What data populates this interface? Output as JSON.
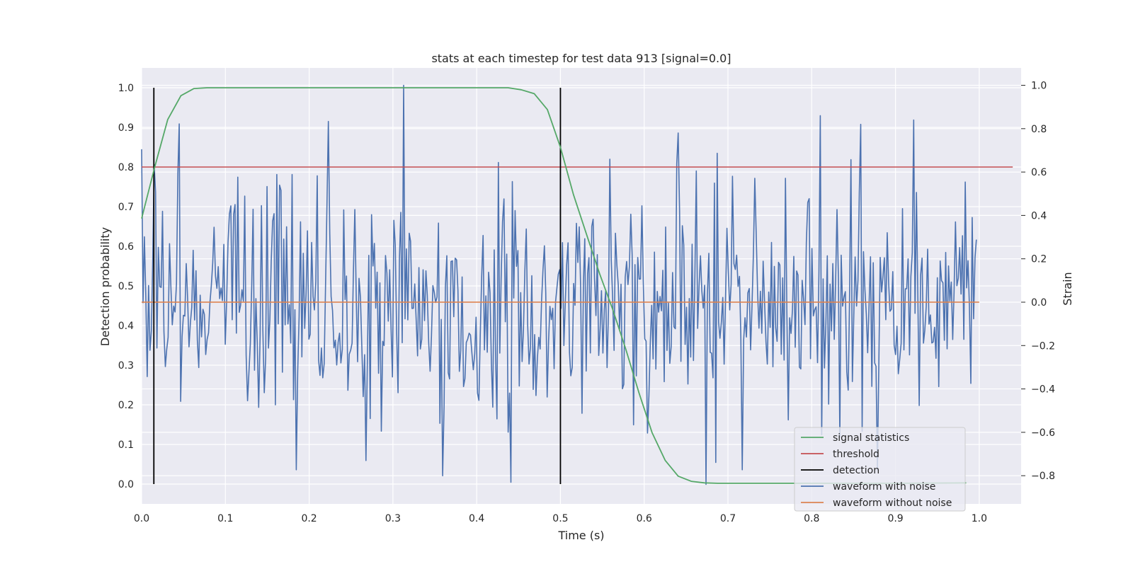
{
  "chart_data": {
    "type": "line",
    "title": "stats at each timestep for test data 913 [signal=0.0]",
    "xlabel": "Time (s)",
    "ylabel": "Detection probability",
    "ylabel_right": "Strain",
    "xlim": [
      0.0,
      1.05
    ],
    "ylim": [
      -0.05,
      1.05
    ],
    "ylim_right": [
      -0.93,
      1.08
    ],
    "xticks": [
      "0.0",
      "0.1",
      "0.2",
      "0.3",
      "0.4",
      "0.5",
      "0.6",
      "0.7",
      "0.8",
      "0.9",
      "1.0"
    ],
    "yticks": [
      "0.0",
      "0.1",
      "0.2",
      "0.3",
      "0.4",
      "0.5",
      "0.6",
      "0.7",
      "0.8",
      "0.9",
      "1.0"
    ],
    "yticks_right": [
      "−0.8",
      "−0.6",
      "−0.4",
      "−0.2",
      "0.0",
      "0.2",
      "0.4",
      "0.6",
      "0.8",
      "1.0"
    ],
    "grid": true,
    "legend_position": "lower-right",
    "colors": {
      "background": "#eaeaf2",
      "grid": "#ffffff",
      "signal": "#55a868",
      "threshold": "#c44e52",
      "detection": "#000000",
      "noisy": "#4c72b0",
      "clean": "#dd8452"
    },
    "series": [
      {
        "name": "signal statistics",
        "axis": "left",
        "x": [
          0.0,
          0.0156,
          0.0312,
          0.0469,
          0.0625,
          0.0781,
          0.0938,
          0.1094,
          0.125,
          0.2,
          0.3,
          0.4,
          0.4375,
          0.4531,
          0.4688,
          0.4844,
          0.5,
          0.5156,
          0.5312,
          0.5469,
          0.5625,
          0.5781,
          0.5938,
          0.6094,
          0.625,
          0.6406,
          0.6562,
          0.6719,
          0.6875,
          0.7,
          0.8,
          0.9,
          0.9844
        ],
        "y": [
          0.67,
          0.8,
          0.92,
          0.98,
          0.998,
          1.0,
          1.0,
          1.0,
          1.0,
          1.0,
          1.0,
          1.0,
          1.0,
          0.995,
          0.985,
          0.945,
          0.85,
          0.73,
          0.63,
          0.53,
          0.44,
          0.34,
          0.23,
          0.13,
          0.06,
          0.02,
          0.007,
          0.003,
          0.002,
          0.002,
          0.002,
          0.002,
          0.003
        ]
      },
      {
        "name": "threshold",
        "axis": "left",
        "x": [
          0.0,
          1.04
        ],
        "y": [
          0.8,
          0.8
        ]
      },
      {
        "name": "detection",
        "axis": "left",
        "x_positions": [
          0.0146,
          0.5
        ],
        "y_range": [
          0.0,
          1.0
        ]
      },
      {
        "name": "waveform with noise",
        "axis": "right",
        "x_range": [
          0.0,
          0.9966
        ],
        "points": 600,
        "note_values": "noise around 0.0 strain",
        "y_min": -0.84,
        "y_max": 1.0,
        "peaks": [
          {
            "x": 0.3125,
            "y": 1.0
          },
          {
            "x": 0.8105,
            "y": 0.86
          },
          {
            "x": 0.9214,
            "y": 0.84
          },
          {
            "x": 0.8593,
            "y": 0.82
          },
          {
            "x": 0.6402,
            "y": 0.78
          },
          {
            "x": 0.3601,
            "y": -0.8
          },
          {
            "x": 0.4405,
            "y": -0.83
          },
          {
            "x": 0.6745,
            "y": -0.84
          },
          {
            "x": 0.2672,
            "y": -0.73
          }
        ]
      },
      {
        "name": "waveform without noise",
        "axis": "right",
        "x": [
          0.0,
          1.0
        ],
        "y": [
          0.0,
          0.0
        ]
      }
    ]
  }
}
